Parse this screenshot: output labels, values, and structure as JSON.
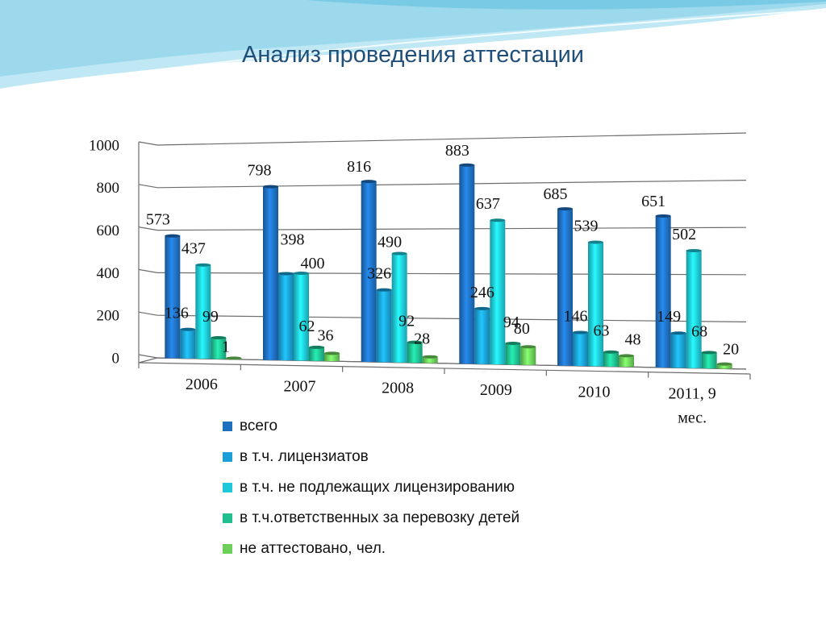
{
  "slide": {
    "title": "Анализ проведения аттестации"
  },
  "theme": {
    "wave_colors": [
      "#bfe8f4",
      "#8fd3ea",
      "#5fbfe0"
    ]
  },
  "chart_data": {
    "type": "bar",
    "title": "",
    "xlabel": "",
    "ylabel": "",
    "ylim": [
      0,
      1000
    ],
    "yticks": [
      "0",
      "200",
      "400",
      "600",
      "800",
      "1000"
    ],
    "categories": [
      "2006",
      "2007",
      "2008",
      "2009",
      "2010",
      "2011, 9 мес."
    ],
    "grid": true,
    "legend_position": "bottom",
    "series": [
      {
        "name": "всего",
        "color": "#1f6fbf",
        "values": [
          573,
          798,
          816,
          883,
          685,
          651
        ]
      },
      {
        "name": "в т.ч. лицензиатов",
        "color": "#1a9fd6",
        "values": [
          136,
          398,
          326,
          246,
          146,
          149
        ]
      },
      {
        "name": "в т.ч. не подлежащих лицензированию",
        "color": "#1fc8d8",
        "values": [
          437,
          400,
          490,
          637,
          539,
          502
        ]
      },
      {
        "name": "в т.ч.ответственных за перевозку детей",
        "color": "#1fbf8f",
        "values": [
          99,
          62,
          92,
          94,
          63,
          68
        ]
      },
      {
        "name": "не аттестовано, чел.",
        "color": "#6ccf5a",
        "values": [
          1,
          36,
          28,
          80,
          48,
          20
        ]
      }
    ]
  }
}
